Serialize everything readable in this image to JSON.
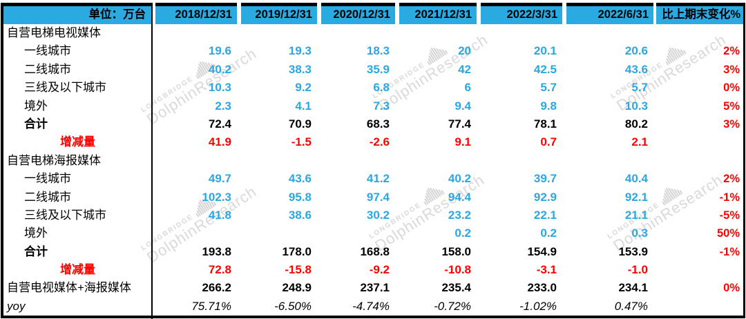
{
  "watermark": {
    "brand": "LONGBRIDGE",
    "name": "DolphinResearch"
  },
  "colors": {
    "header_bg": "#29abe2",
    "value_blue": "#2ba7e0",
    "negative_red": "#fe0000",
    "text_black": "#000000",
    "watermark_gray": "#d9d9d9"
  },
  "chart_data": {
    "type": "table",
    "unit_label": "单位：万台",
    "columns": [
      "2018/12/31",
      "2019/12/31",
      "2020/12/31",
      "2021/12/31",
      "2022/3/31",
      "2022/6/31"
    ],
    "change_column": "比上期末变化%",
    "rows": [
      {
        "label": "自营电梯电视媒体",
        "style": "section",
        "values": [
          "",
          "",
          "",
          "",
          "",
          ""
        ],
        "change": ""
      },
      {
        "label": "一线城市",
        "style": "city",
        "values": [
          "19.6",
          "19.3",
          "18.3",
          "20",
          "20.1",
          "20.6"
        ],
        "change": "2%"
      },
      {
        "label": "二线城市",
        "style": "city",
        "values": [
          "40.2",
          "38.3",
          "35.9",
          "42",
          "42.5",
          "43.6"
        ],
        "change": "3%"
      },
      {
        "label": "三线及以下城市",
        "style": "city",
        "values": [
          "10.3",
          "9.2",
          "6.8",
          "6",
          "5.7",
          "5.7"
        ],
        "change": "0%"
      },
      {
        "label": "境外",
        "style": "city",
        "values": [
          "2.3",
          "4.1",
          "7.3",
          "9.4",
          "9.8",
          "10.3"
        ],
        "change": "5%"
      },
      {
        "label": "合计",
        "style": "total",
        "values": [
          "72.4",
          "70.9",
          "68.3",
          "77.4",
          "78.1",
          "80.2"
        ],
        "change": "3%"
      },
      {
        "label": "增减量",
        "style": "delta",
        "values": [
          "41.9",
          "-1.5",
          "-2.6",
          "9.1",
          "0.7",
          "2.1"
        ],
        "change": ""
      },
      {
        "label": "自营电梯海报媒体",
        "style": "section",
        "values": [
          "",
          "",
          "",
          "",
          "",
          ""
        ],
        "change": ""
      },
      {
        "label": "一线城市",
        "style": "city",
        "values": [
          "49.7",
          "43.6",
          "41.2",
          "40.2",
          "39.7",
          "40.4"
        ],
        "change": "2%"
      },
      {
        "label": "二线城市",
        "style": "city",
        "values": [
          "102.3",
          "95.8",
          "97.4",
          "94.4",
          "92.9",
          "92.1"
        ],
        "change": "-1%"
      },
      {
        "label": "三线及以下城市",
        "style": "city",
        "values": [
          "41.8",
          "38.6",
          "30.2",
          "23.2",
          "22.1",
          "21.1"
        ],
        "change": "-5%"
      },
      {
        "label": "境外",
        "style": "city",
        "values": [
          "",
          "",
          "",
          "0.2",
          "0.2",
          "0.3"
        ],
        "change": "50%"
      },
      {
        "label": "合计",
        "style": "total",
        "values": [
          "193.8",
          "178.0",
          "168.8",
          "158.0",
          "154.9",
          "153.9"
        ],
        "change": "-1%"
      },
      {
        "label": "增减量",
        "style": "delta",
        "values": [
          "72.8",
          "-15.8",
          "-9.2",
          "-10.8",
          "-3.1",
          "-1.0"
        ],
        "change": ""
      },
      {
        "label": "自营电视媒体+海报媒体",
        "style": "grand",
        "values": [
          "266.2",
          "248.9",
          "237.1",
          "235.4",
          "233.0",
          "234.1"
        ],
        "change": "0%"
      },
      {
        "label": "yoy",
        "style": "yoy",
        "values": [
          "75.71%",
          "-6.50%",
          "-4.74%",
          "-0.72%",
          "-1.02%",
          "0.47%"
        ],
        "change": ""
      }
    ]
  }
}
